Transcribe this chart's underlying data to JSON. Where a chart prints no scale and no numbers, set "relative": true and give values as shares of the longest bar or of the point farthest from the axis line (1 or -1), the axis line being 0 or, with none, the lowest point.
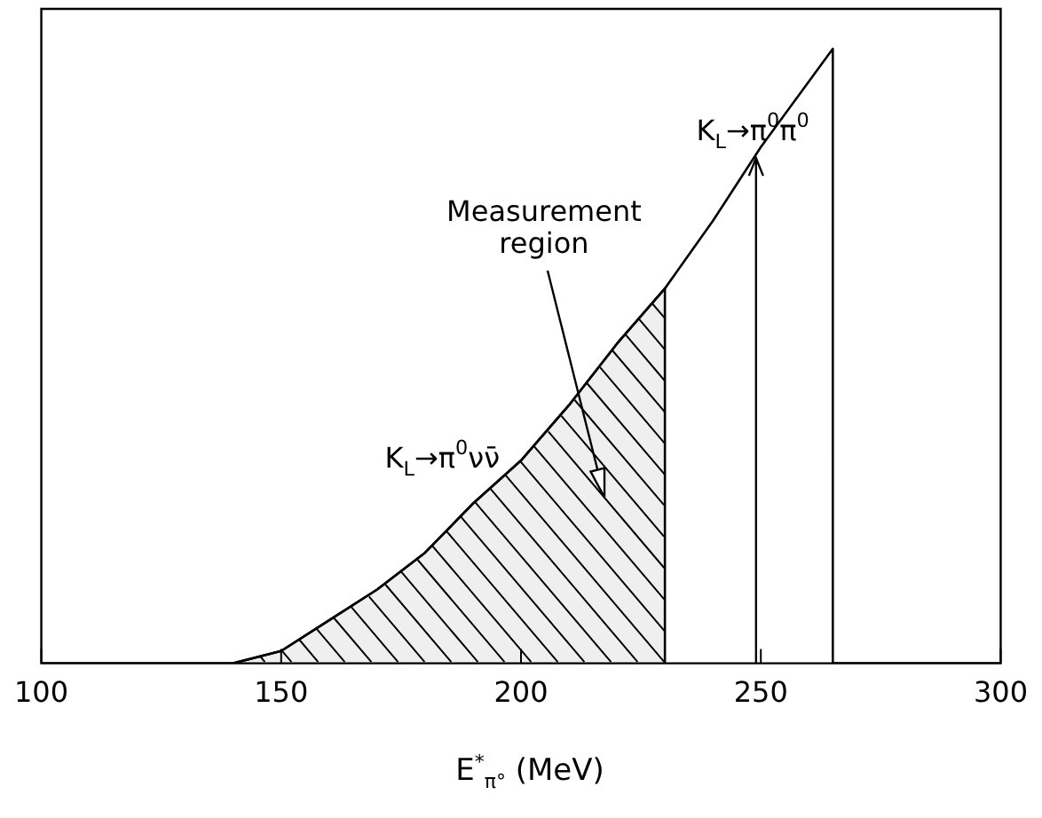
{
  "chart_data": {
    "type": "line",
    "xlabel": "E$^{*}$$_{π°}$ (MeV)",
    "x": [
      100,
      140,
      150,
      160,
      170,
      180,
      190,
      200,
      210,
      220,
      230,
      240,
      250,
      265,
      265,
      300
    ],
    "series": [
      {
        "name": "K$_{L}$→π$^{0}$νν̄",
        "color": "#000000",
        "values": [
          0,
          0,
          0.02,
          0.07,
          0.12,
          0.18,
          0.26,
          0.33,
          0.42,
          0.52,
          0.61,
          0.72,
          0.84,
          1,
          0,
          0
        ]
      },
      {
        "type": "area",
        "color": "#000000",
        "x": [
          140,
          150,
          160,
          170,
          180,
          190,
          200,
          210,
          220,
          230,
          230
        ],
        "values": [
          0,
          0.02,
          0.07,
          0.12,
          0.18,
          0.26,
          0.33,
          0.42,
          0.52,
          0.61,
          0
        ]
      }
    ],
    "annotations": [
      "Measurement region"
    ],
    "relative": true,
    "xlim": [
      100,
      300
    ],
    "xticks": [
      100,
      150,
      200,
      250,
      300
    ],
    "ref_lines": [
      {
        "axis": "x",
        "value": 249,
        "label": "K$_{L}$→π$^{0}$π$^{0}$"
      }
    ],
    "grid": false,
    "legend": false,
    "marker": "none",
    "line_style": "solid"
  }
}
